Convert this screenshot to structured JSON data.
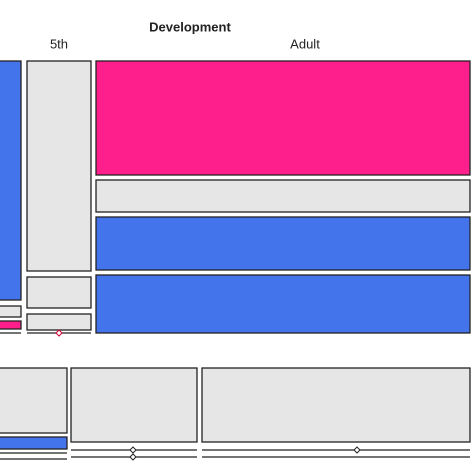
{
  "title": "Development",
  "columns": [
    "5th",
    "Adult"
  ]
}
